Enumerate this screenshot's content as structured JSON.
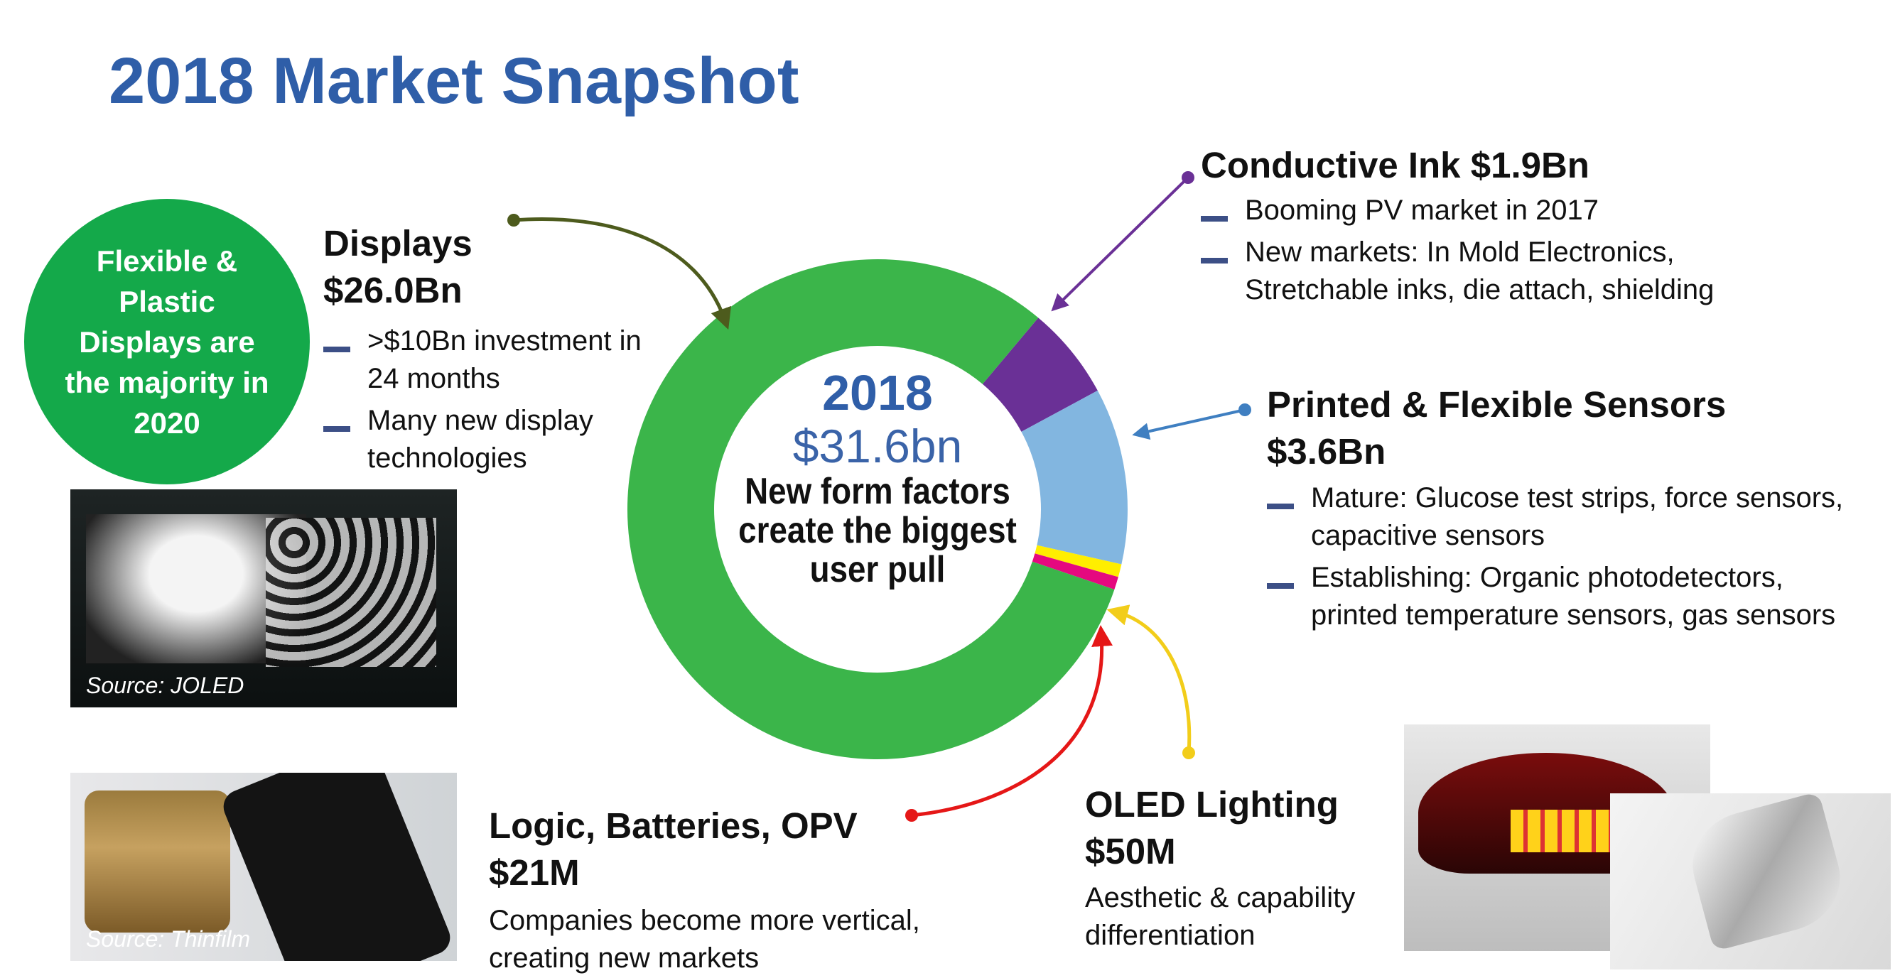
{
  "title": "2018 Market Snapshot",
  "badge": "Flexible & Plastic Displays are the majority in 2020",
  "center": {
    "year": "2018",
    "total": "$31.6bn",
    "note": "New form factors create the biggest user pull"
  },
  "displays": {
    "title": "Displays",
    "value": "$26.0Bn",
    "bullets": [
      ">$10Bn investment in 24 months",
      "Many new display technologies"
    ]
  },
  "conductive_ink": {
    "title": "Conductive Ink $1.9Bn",
    "bullets": [
      "Booming PV market in 2017",
      "New markets: In Mold Electronics, Stretchable inks, die attach, shielding"
    ]
  },
  "sensors": {
    "title": "Printed & Flexible Sensors",
    "value": "$3.6Bn",
    "bullets": [
      "Mature: Glucose test  strips, force sensors, capacitive sensors",
      "Establishing: Organic photodetectors, printed temperature sensors, gas sensors"
    ]
  },
  "oled": {
    "title": "OLED Lighting",
    "value": "$50M",
    "desc": "Aesthetic & capability differentiation"
  },
  "logic": {
    "title": "Logic, Batteries, OPV",
    "value": "$21M",
    "desc": "Companies become more vertical, creating new markets"
  },
  "images": {
    "joled_caption": "Source: JOLED",
    "thinfilm_caption": "Source: Thinfilm"
  },
  "colors": {
    "title": "#2f5ea8",
    "displays": "#3bb54a",
    "ink": "#6a3096",
    "sensors": "#82b6e0",
    "oled": "#ffee00",
    "logic": "#e5097f"
  },
  "chart_data": {
    "type": "pie",
    "title": "2018 $31.6bn",
    "categories": [
      "Conductive Ink",
      "Printed & Flexible Sensors",
      "OLED Lighting",
      "Logic, Batteries, OPV",
      "Displays"
    ],
    "values": [
      1.9,
      3.6,
      0.05,
      0.021,
      26.0
    ],
    "units": "USD Bn",
    "colors": [
      "#6a3096",
      "#82b6e0",
      "#ffee00",
      "#e5097f",
      "#3bb54a"
    ]
  }
}
